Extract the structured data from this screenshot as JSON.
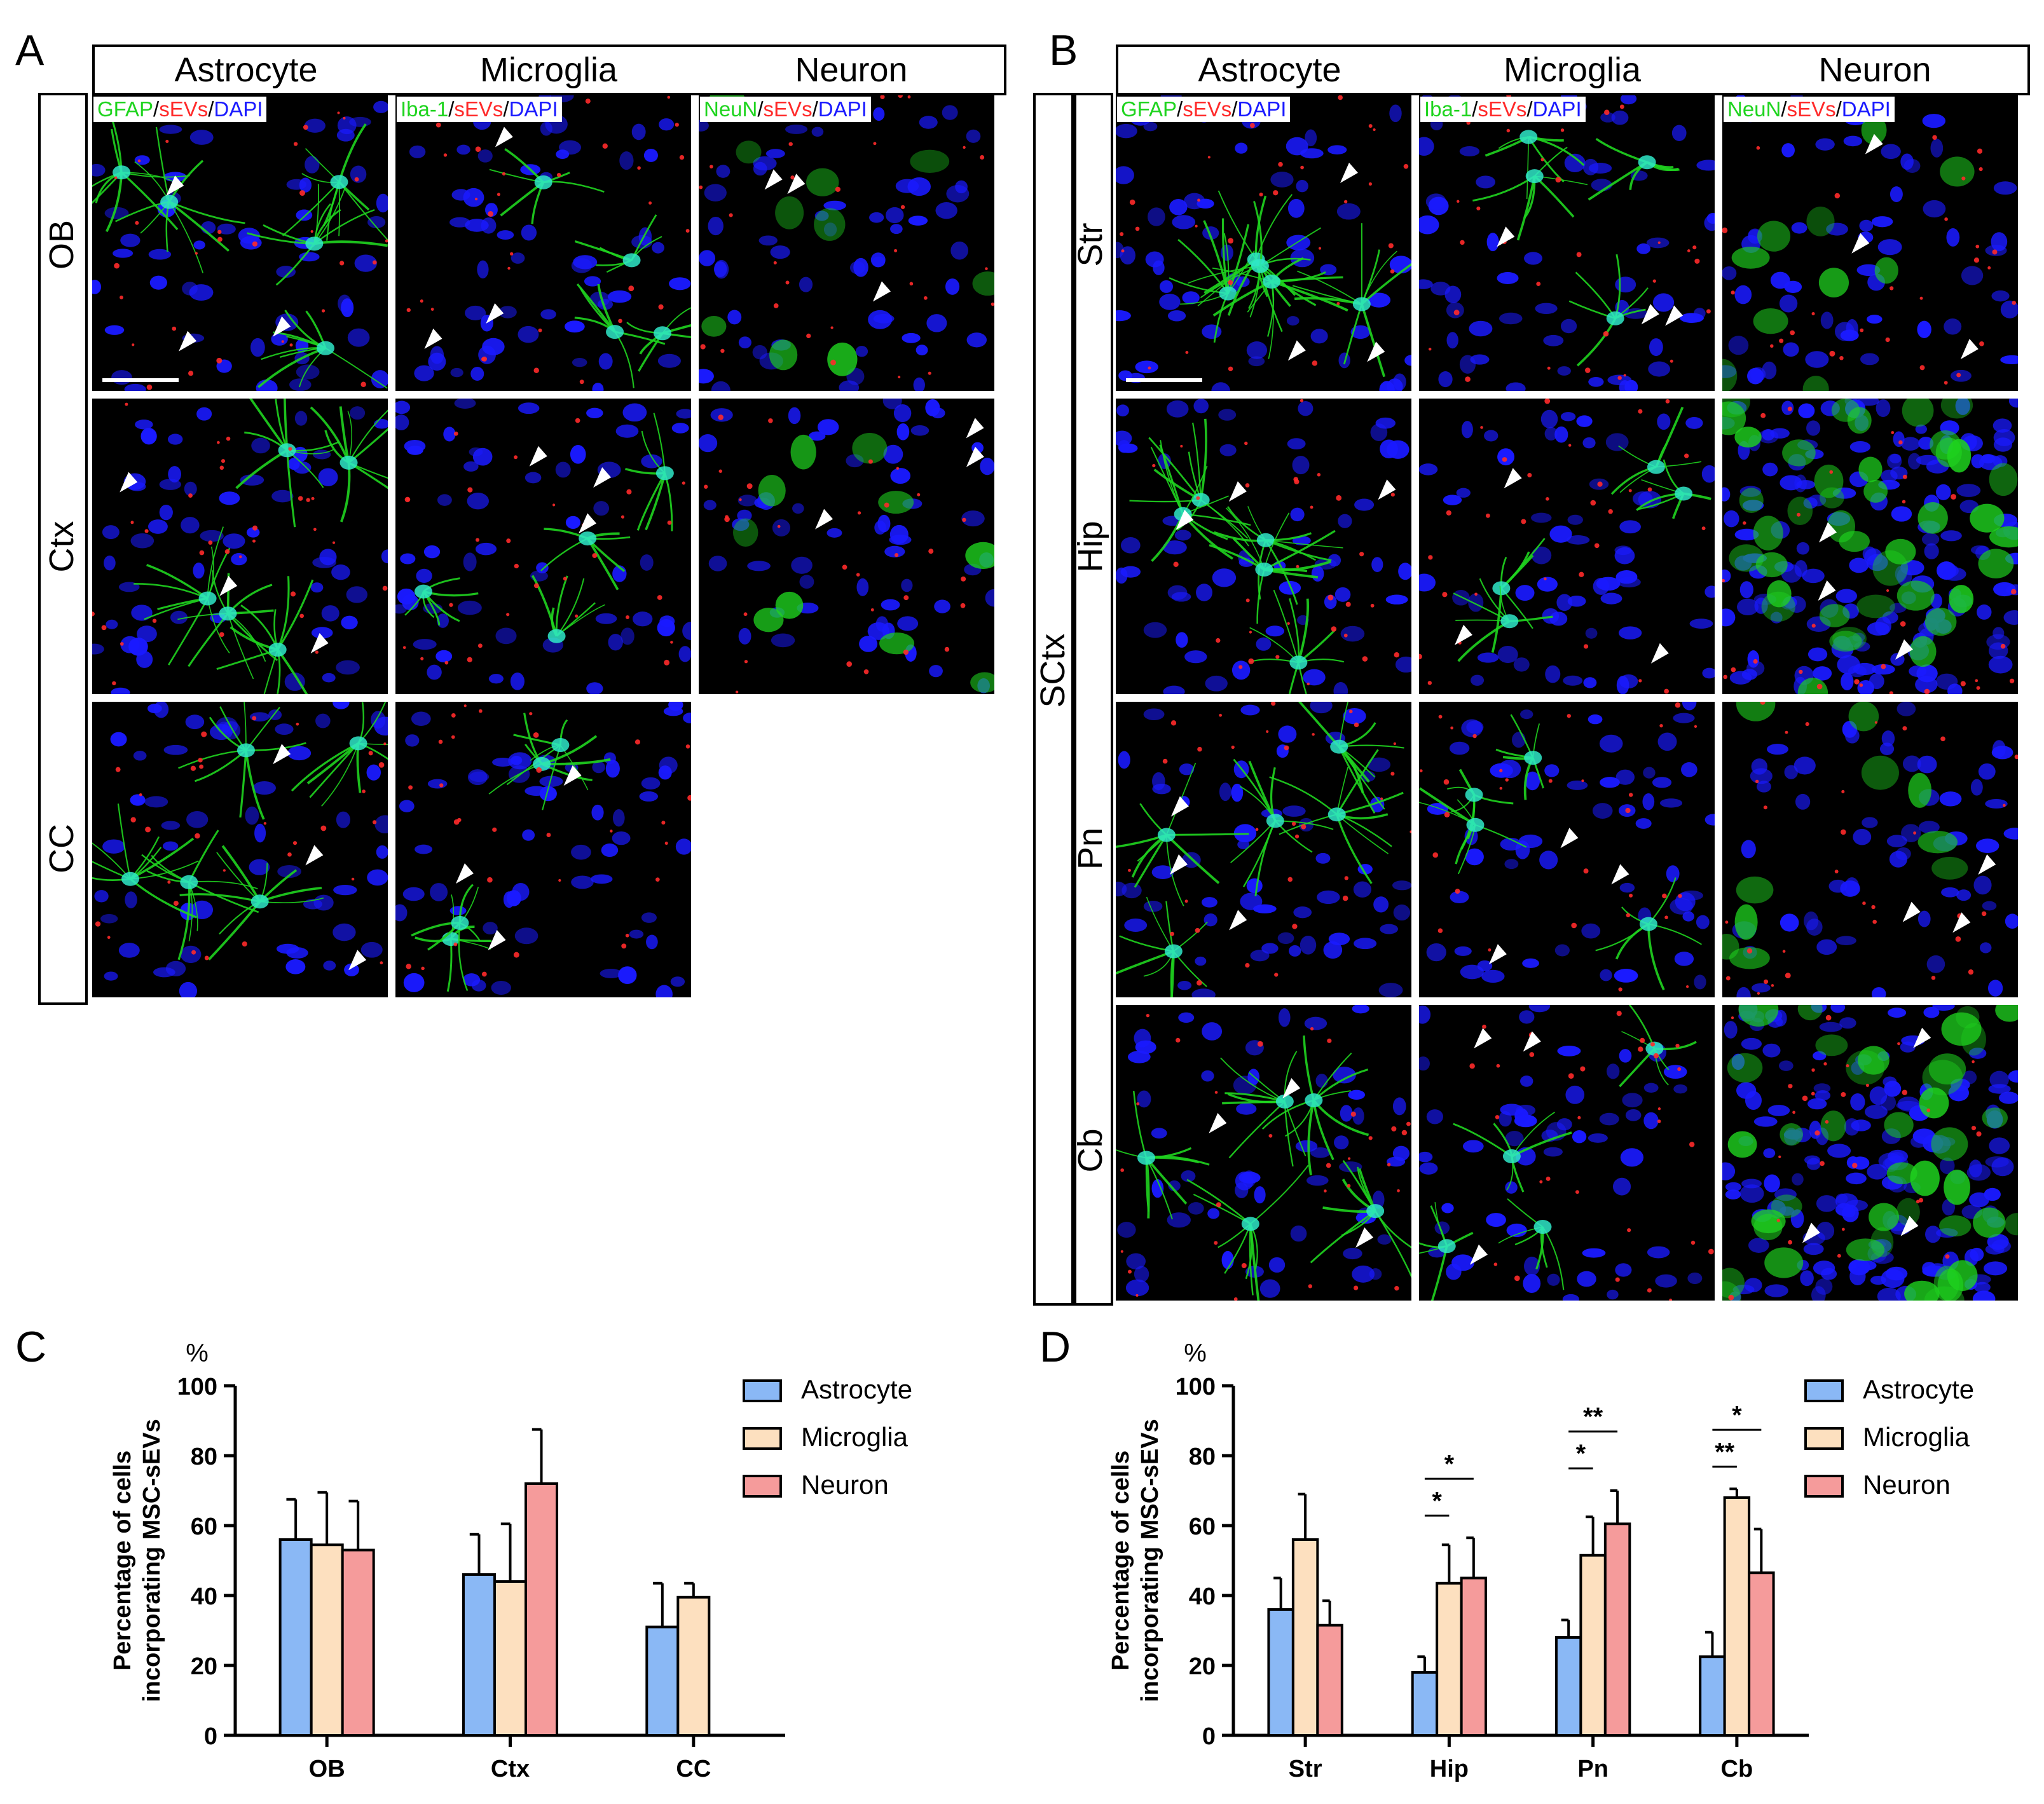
{
  "panels": {
    "A": {
      "letter": "A",
      "columns": [
        "Astrocyte",
        "Microglia",
        "Neuron"
      ],
      "rows": [
        "OB",
        "Ctx",
        "CC"
      ],
      "stain_labels": [
        {
          "marker": "GFAP",
          "sep1": "/",
          "evs": "sEVs",
          "sep2": "/",
          "dapi": "DAPI"
        },
        {
          "marker": "Iba-1",
          "sep1": "/",
          "evs": "sEVs",
          "sep2": "/",
          "dapi": "DAPI"
        },
        {
          "marker": "NeuN",
          "sep1": "/",
          "evs": "sEVs",
          "sep2": "/",
          "dapi": "DAPI"
        }
      ]
    },
    "B": {
      "letter": "B",
      "columns": [
        "Astrocyte",
        "Microglia",
        "Neuron"
      ],
      "group_label": "SCtx",
      "rows": [
        "Str",
        "Hip",
        "Pn",
        "Cb"
      ],
      "stain_labels": [
        {
          "marker": "GFAP",
          "sep1": "/",
          "evs": "sEVs",
          "sep2": "/",
          "dapi": "DAPI"
        },
        {
          "marker": "Iba-1",
          "sep1": "/",
          "evs": "sEVs",
          "sep2": "/",
          "dapi": "DAPI"
        },
        {
          "marker": "NeuN",
          "sep1": "/",
          "evs": "sEVs",
          "sep2": "/",
          "dapi": "DAPI"
        }
      ]
    },
    "C": {
      "letter": "C"
    },
    "D": {
      "letter": "D"
    }
  },
  "colors": {
    "astrocyte": "#8ab8f5",
    "microglia": "#fde0bf",
    "neuron": "#f59b9b",
    "green_stain": "#1fd41f",
    "red_stain": "#ff2a2a",
    "blue_stain": "#1a1aff"
  },
  "chart_data": [
    {
      "type": "bar",
      "panel": "C",
      "unit_label": "%",
      "ylabel": "Percentage of cells incorporating MSC-sEVs",
      "ylabel_lines": [
        "Percentage of cells",
        "incorporating MSC-sEVs"
      ],
      "ylim": [
        0,
        100
      ],
      "yticks": [
        0,
        20,
        40,
        60,
        80,
        100
      ],
      "categories": [
        "OB",
        "Ctx",
        "CC"
      ],
      "legend": "top-right",
      "series": [
        {
          "name": "Astrocyte",
          "color": "#8ab8f5",
          "values": [
            56,
            46,
            31
          ],
          "errors": [
            11.5,
            11.5,
            12.5
          ]
        },
        {
          "name": "Microglia",
          "color": "#fde0bf",
          "values": [
            54.5,
            44,
            39.5
          ],
          "errors": [
            15,
            16.5,
            4
          ]
        },
        {
          "name": "Neuron",
          "color": "#f59b9b",
          "values": [
            53,
            72,
            null
          ],
          "errors": [
            14,
            15.5,
            null
          ]
        }
      ],
      "significance": []
    },
    {
      "type": "bar",
      "panel": "D",
      "unit_label": "%",
      "ylabel": "Percentage of cells incorporating MSC-sEVs",
      "ylabel_lines": [
        "Percentage of cells",
        "incorporating MSC-sEVs"
      ],
      "ylim": [
        0,
        100
      ],
      "yticks": [
        0,
        20,
        40,
        60,
        80,
        100
      ],
      "categories": [
        "Str",
        "Hip",
        "Pn",
        "Cb"
      ],
      "legend": "top-right",
      "series": [
        {
          "name": "Astrocyte",
          "color": "#8ab8f5",
          "values": [
            36,
            18,
            28,
            22.5
          ],
          "errors": [
            9,
            4.5,
            5,
            7
          ]
        },
        {
          "name": "Microglia",
          "color": "#fde0bf",
          "values": [
            56,
            43.5,
            51.5,
            68
          ],
          "errors": [
            13,
            11,
            11,
            2.5
          ]
        },
        {
          "name": "Neuron",
          "color": "#f59b9b",
          "values": [
            31.5,
            45,
            60.5,
            46.5
          ],
          "errors": [
            7,
            11.5,
            9.5,
            12.5
          ]
        }
      ],
      "significance": [
        {
          "category": 1,
          "from": 0,
          "to": 1,
          "label": "*",
          "level": 1
        },
        {
          "category": 1,
          "from": 0,
          "to": 2,
          "label": "*",
          "level": 2
        },
        {
          "category": 2,
          "from": 0,
          "to": 1,
          "label": "*",
          "level": 1
        },
        {
          "category": 2,
          "from": 0,
          "to": 2,
          "label": "**",
          "level": 2
        },
        {
          "category": 3,
          "from": 0,
          "to": 1,
          "label": "**",
          "level": 1
        },
        {
          "category": 3,
          "from": 0,
          "to": 2,
          "label": "*",
          "level": 2
        }
      ]
    }
  ]
}
